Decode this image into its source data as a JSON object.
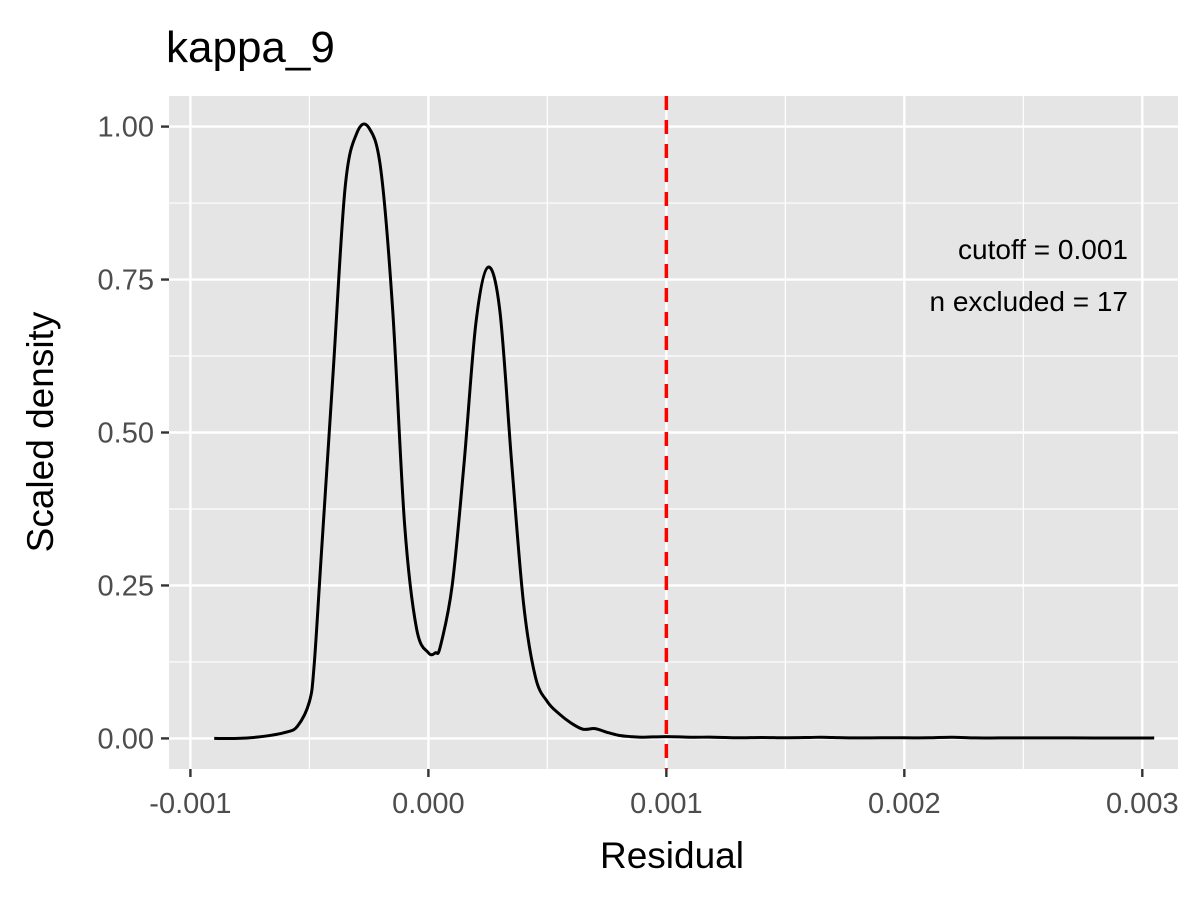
{
  "chart_data": {
    "type": "line",
    "title": "kappa_9",
    "xlabel": "Residual",
    "ylabel": "Scaled density",
    "xlim": [
      -0.00109,
      0.00315
    ],
    "ylim": [
      -0.05,
      1.05
    ],
    "x_major_ticks": [
      -0.001,
      0.0,
      0.001,
      0.002,
      0.003
    ],
    "x_tick_labels": [
      "-0.001",
      "0.000",
      "0.001",
      "0.002",
      "0.003"
    ],
    "x_minor_ticks": [
      -0.0005,
      0.0005,
      0.0015,
      0.0025
    ],
    "y_major_ticks": [
      0.0,
      0.25,
      0.5,
      0.75,
      1.0
    ],
    "y_tick_labels": [
      "0.00",
      "0.25",
      "0.50",
      "0.75",
      "1.00"
    ],
    "y_minor_ticks": [
      0.125,
      0.375,
      0.625,
      0.875
    ],
    "grid": true,
    "panel_color": "#e5e5e5",
    "grid_color": "#ffffff",
    "line_color": "#000000",
    "series": [
      {
        "x": [
          -0.0009,
          -0.0008,
          -0.0007,
          -0.0006,
          -0.00055,
          -0.0005,
          -0.00048,
          -0.00045,
          -0.0004,
          -0.00035,
          -0.0003,
          -0.00025,
          -0.0002,
          -0.00015,
          -0.0001,
          -5e-05,
          0.0,
          3e-05,
          5e-05,
          0.0001,
          0.00015,
          0.0002,
          0.00025,
          0.0003,
          0.00035,
          0.0004,
          0.00045,
          0.0005,
          0.00055,
          0.0006,
          0.00065,
          0.0007,
          0.00075,
          0.0008,
          0.00085,
          0.0009,
          0.001,
          0.0011,
          0.0012,
          0.0013,
          0.0014,
          0.0015,
          0.0016,
          0.00165,
          0.0017,
          0.0018,
          0.0019,
          0.002,
          0.0021,
          0.0022,
          0.0023,
          0.0024,
          0.0025,
          0.0026,
          0.0027,
          0.0028,
          0.0029,
          0.003,
          0.00305
        ],
        "y": [
          0.0,
          0.0,
          0.003,
          0.01,
          0.02,
          0.06,
          0.12,
          0.3,
          0.6,
          0.9,
          0.99,
          0.998,
          0.93,
          0.7,
          0.35,
          0.18,
          0.14,
          0.14,
          0.15,
          0.25,
          0.45,
          0.68,
          0.77,
          0.7,
          0.45,
          0.22,
          0.1,
          0.06,
          0.04,
          0.025,
          0.015,
          0.016,
          0.01,
          0.005,
          0.003,
          0.002,
          0.003,
          0.002,
          0.002,
          0.001,
          0.0015,
          0.001,
          0.0015,
          0.002,
          0.0015,
          0.0008,
          0.001,
          0.001,
          0.001,
          0.002,
          0.0008,
          0.0008,
          0.0008,
          0.0008,
          0.0008,
          0.0006,
          0.0006,
          0.0006,
          0.0008
        ]
      }
    ],
    "vlines": [
      {
        "x": 0.001,
        "color": "#ff0000",
        "style": "dashed"
      }
    ],
    "annotations": [
      {
        "text": "cutoff = 0.001",
        "position": "top-right"
      },
      {
        "text": "n excluded = 17",
        "position": "top-right"
      }
    ]
  }
}
